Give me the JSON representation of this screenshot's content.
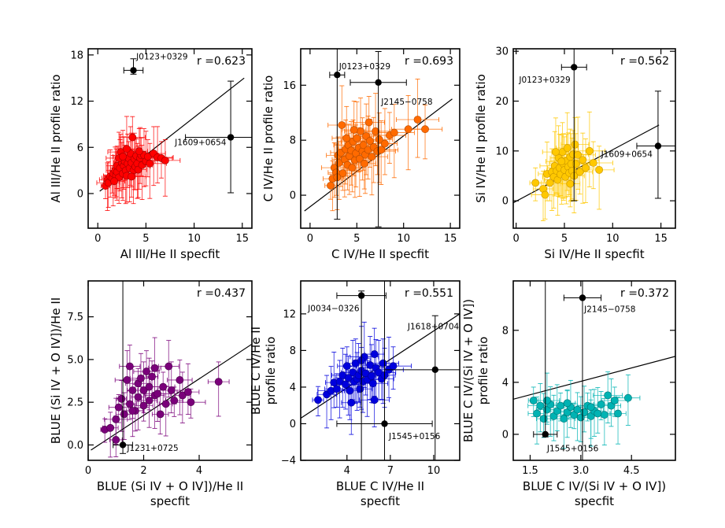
{
  "chart_data": [
    {
      "type": "scatter",
      "ylabel": "Al III/He II profile ratio",
      "xlabel": "Al III/He II specfit",
      "xlabel2": "",
      "corr": "r =0.623",
      "xlim": [
        -1,
        16
      ],
      "ylim": [
        -4.5,
        18.8
      ],
      "xticks": [
        0,
        5,
        10,
        15
      ],
      "yticks": [
        0,
        6,
        12,
        18
      ],
      "xtick_labels": [
        "0",
        "5",
        "10",
        "15"
      ],
      "ytick_labels": [
        "0",
        "6",
        "12",
        "18"
      ],
      "color": "#ff0000",
      "edge": "#9b0000",
      "fit": [
        [
          0.2,
          0.3
        ],
        [
          15.2,
          15.0
        ]
      ],
      "points": [
        [
          0.8,
          1.0
        ],
        [
          1.0,
          1.8
        ],
        [
          1.1,
          1.4
        ],
        [
          1.3,
          2.2
        ],
        [
          1.5,
          2.0
        ],
        [
          1.6,
          2.6
        ],
        [
          1.8,
          3.0
        ],
        [
          1.9,
          2.3
        ],
        [
          2.0,
          2.8
        ],
        [
          2.0,
          3.6
        ],
        [
          2.2,
          2.1
        ],
        [
          2.3,
          3.3
        ],
        [
          2.4,
          5.4
        ],
        [
          2.5,
          4.0
        ],
        [
          2.6,
          2.6
        ],
        [
          2.7,
          3.6
        ],
        [
          2.8,
          4.2
        ],
        [
          2.9,
          3.0
        ],
        [
          3.0,
          2.3
        ],
        [
          3.1,
          3.9
        ],
        [
          3.2,
          4.6
        ],
        [
          3.3,
          3.3
        ],
        [
          3.4,
          5.2
        ],
        [
          3.5,
          4.0
        ],
        [
          3.6,
          7.3
        ],
        [
          3.7,
          3.0
        ],
        [
          3.8,
          4.5
        ],
        [
          3.9,
          3.5
        ],
        [
          4.0,
          4.9
        ],
        [
          4.1,
          3.9
        ],
        [
          4.2,
          3.1
        ],
        [
          4.4,
          4.6
        ],
        [
          4.5,
          5.0
        ],
        [
          4.6,
          3.7
        ],
        [
          4.8,
          5.0
        ],
        [
          5.0,
          4.2
        ],
        [
          5.2,
          4.8
        ],
        [
          5.4,
          3.9
        ],
        [
          5.8,
          5.2
        ],
        [
          6.2,
          4.7
        ],
        [
          6.6,
          4.6
        ],
        [
          7.0,
          4.3
        ],
        [
          2.2,
          4.6
        ],
        [
          3.0,
          5.8
        ],
        [
          1.7,
          1.6
        ],
        [
          4.3,
          5.5
        ],
        [
          2.6,
          4.8
        ],
        [
          3.5,
          2.2
        ]
      ],
      "outliers": [
        {
          "x": 3.7,
          "y": 16.0,
          "xerr": 1.0,
          "ylo": 0.5,
          "yhi": 1.5,
          "label": "J0123+0329",
          "lx": 4.0,
          "ly": 17.4
        },
        {
          "x": 13.8,
          "y": 7.3,
          "xerr": 4.7,
          "ylo": 7.2,
          "yhi": 7.3,
          "label": "J1609+0654",
          "lx": 8.0,
          "ly": 6.3
        }
      ]
    },
    {
      "type": "scatter",
      "ylabel": "C IV/He II profile ratio",
      "xlabel": "C IV/He II specfit",
      "xlabel2": "",
      "corr": "r =0.693",
      "xlim": [
        -1,
        16
      ],
      "ylim": [
        -4.8,
        21.3
      ],
      "xticks": [
        0,
        5,
        10,
        15
      ],
      "yticks": [
        0,
        8,
        16
      ],
      "xtick_labels": [
        "0",
        "5",
        "10",
        "15"
      ],
      "ytick_labels": [
        "0",
        "8",
        "16"
      ],
      "color": "#ff6a00",
      "edge": "#b14a00",
      "fit": [
        [
          -0.6,
          -2.3
        ],
        [
          15.2,
          14.0
        ]
      ],
      "points": [
        [
          2.2,
          1.4
        ],
        [
          2.4,
          2.4
        ],
        [
          2.6,
          4.0
        ],
        [
          2.8,
          3.3
        ],
        [
          3.0,
          5.8
        ],
        [
          3.1,
          4.7
        ],
        [
          3.3,
          6.2
        ],
        [
          3.4,
          10.2
        ],
        [
          3.5,
          3.2
        ],
        [
          3.7,
          5.2
        ],
        [
          3.8,
          6.7
        ],
        [
          4.0,
          4.4
        ],
        [
          4.1,
          7.3
        ],
        [
          4.2,
          5.7
        ],
        [
          4.4,
          6.5
        ],
        [
          4.5,
          4.0
        ],
        [
          4.6,
          7.8
        ],
        [
          4.8,
          5.1
        ],
        [
          4.9,
          6.1
        ],
        [
          5.0,
          8.3
        ],
        [
          5.2,
          6.9
        ],
        [
          5.3,
          5.3
        ],
        [
          5.4,
          9.3
        ],
        [
          5.6,
          6.4
        ],
        [
          5.7,
          7.3
        ],
        [
          5.9,
          5.9
        ],
        [
          6.0,
          8.6
        ],
        [
          6.2,
          6.6
        ],
        [
          6.4,
          7.9
        ],
        [
          6.6,
          5.6
        ],
        [
          6.8,
          7.0
        ],
        [
          7.0,
          9.3
        ],
        [
          7.2,
          6.4
        ],
        [
          7.4,
          8.1
        ],
        [
          7.6,
          6.6
        ],
        [
          8.0,
          7.5
        ],
        [
          8.5,
          8.7
        ],
        [
          9.0,
          9.1
        ],
        [
          10.5,
          9.6
        ],
        [
          11.5,
          11.0
        ],
        [
          12.3,
          9.6
        ],
        [
          4.7,
          9.5
        ],
        [
          3.9,
          8.3
        ],
        [
          5.8,
          4.6
        ],
        [
          6.3,
          10.6
        ],
        [
          2.9,
          2.6
        ]
      ],
      "outliers": [
        {
          "x": 2.9,
          "y": 17.5,
          "xerr": 0.8,
          "ylo": 21.0,
          "yhi": 4.5,
          "label": "J0123+0329",
          "lx": 3.1,
          "ly": 18.3
        },
        {
          "x": 7.3,
          "y": 16.4,
          "xerr": 3.0,
          "ylo": 21.0,
          "yhi": 4.5,
          "label": "J2145−0758",
          "lx": 7.6,
          "ly": 13.2
        }
      ]
    },
    {
      "type": "scatter",
      "ylabel": "Si IV/He II profile ratio",
      "xlabel": "Si IV/He II specfit",
      "xlabel2": "",
      "corr": "r =0.562",
      "xlim": [
        -0.3,
        16.5
      ],
      "ylim": [
        -5.5,
        30.5
      ],
      "xticks": [
        0,
        5,
        10,
        15
      ],
      "yticks": [
        0,
        10,
        20,
        30
      ],
      "xtick_labels": [
        "0",
        "5",
        "10",
        "15"
      ],
      "ytick_labels": [
        "0",
        "10",
        "20",
        "30"
      ],
      "color": "#ffc800",
      "edge": "#c79400",
      "fit": [
        [
          -0.3,
          -0.4
        ],
        [
          14.8,
          15.2
        ]
      ],
      "points": [
        [
          2.0,
          3.6
        ],
        [
          2.8,
          2.4
        ],
        [
          3.0,
          1.2
        ],
        [
          3.2,
          5.4
        ],
        [
          3.5,
          3.6
        ],
        [
          3.7,
          5.8
        ],
        [
          3.9,
          4.8
        ],
        [
          4.0,
          7.0
        ],
        [
          4.2,
          6.0
        ],
        [
          4.3,
          4.2
        ],
        [
          4.4,
          8.6
        ],
        [
          4.5,
          6.6
        ],
        [
          4.6,
          5.3
        ],
        [
          4.8,
          9.8
        ],
        [
          4.9,
          7.4
        ],
        [
          5.0,
          6.2
        ],
        [
          5.1,
          4.8
        ],
        [
          5.2,
          8.0
        ],
        [
          5.3,
          10.6
        ],
        [
          5.4,
          6.8
        ],
        [
          5.5,
          5.6
        ],
        [
          5.6,
          8.8
        ],
        [
          5.7,
          7.4
        ],
        [
          5.8,
          6.0
        ],
        [
          5.9,
          9.3
        ],
        [
          6.0,
          5.0
        ],
        [
          6.2,
          7.4
        ],
        [
          6.4,
          9.2
        ],
        [
          6.6,
          5.8
        ],
        [
          6.9,
          8.2
        ],
        [
          7.2,
          6.6
        ],
        [
          7.6,
          10.0
        ],
        [
          8.0,
          7.6
        ],
        [
          8.6,
          6.2
        ],
        [
          4.1,
          9.8
        ],
        [
          5.6,
          3.4
        ],
        [
          6.1,
          11.3
        ],
        [
          4.7,
          7.9
        ]
      ],
      "outliers": [
        {
          "x": 6.0,
          "y": 26.8,
          "xerr": 1.3,
          "ylo": 26.8,
          "yhi": 4.0,
          "label": "J0123+0329",
          "lx": 0.3,
          "ly": 23.7
        },
        {
          "x": 14.7,
          "y": 11.0,
          "xerr": 2.2,
          "ylo": 10.5,
          "yhi": 11.0,
          "label": "J1609+0654",
          "lx": 8.8,
          "ly": 8.8
        }
      ]
    },
    {
      "type": "scatter",
      "ylabel": "BLUE (Si IV + O IV])/He II",
      "xlabel": "BLUE  (Si IV + O IV])/He II",
      "xlabel2": "specfit",
      "corr": "r =0.437",
      "xlim": [
        0,
        5.9
      ],
      "ylim": [
        -0.9,
        9.6
      ],
      "xticks": [
        0,
        2,
        4
      ],
      "yticks": [
        0.0,
        2.5,
        5.0,
        7.5
      ],
      "xtick_labels": [
        "0",
        "2",
        "4"
      ],
      "ytick_labels": [
        "0.0",
        "2.5",
        "5.0",
        "7.5"
      ],
      "color": "#7a007a",
      "edge": "#4a004a",
      "fit": [
        [
          0.1,
          -0.3
        ],
        [
          5.9,
          5.9
        ]
      ],
      "points": [
        [
          0.6,
          0.9
        ],
        [
          0.8,
          1.0
        ],
        [
          1.0,
          1.5
        ],
        [
          1.0,
          0.3
        ],
        [
          1.1,
          2.2
        ],
        [
          1.2,
          2.7
        ],
        [
          1.3,
          1.8
        ],
        [
          1.4,
          3.8
        ],
        [
          1.5,
          2.4
        ],
        [
          1.5,
          4.6
        ],
        [
          1.6,
          3.2
        ],
        [
          1.7,
          2.0
        ],
        [
          1.8,
          3.6
        ],
        [
          1.8,
          2.8
        ],
        [
          1.9,
          3.9
        ],
        [
          2.0,
          3.2
        ],
        [
          2.0,
          2.3
        ],
        [
          2.1,
          4.3
        ],
        [
          2.2,
          2.6
        ],
        [
          2.2,
          3.4
        ],
        [
          2.3,
          4.0
        ],
        [
          2.4,
          2.9
        ],
        [
          2.5,
          3.0
        ],
        [
          2.6,
          1.8
        ],
        [
          2.7,
          3.4
        ],
        [
          2.8,
          2.4
        ],
        [
          2.9,
          4.6
        ],
        [
          3.0,
          3.2
        ],
        [
          3.1,
          2.6
        ],
        [
          3.3,
          3.8
        ],
        [
          3.4,
          2.9
        ],
        [
          3.6,
          3.1
        ],
        [
          3.7,
          2.5
        ],
        [
          4.7,
          3.7
        ],
        [
          1.6,
          2.0
        ],
        [
          2.4,
          4.5
        ]
      ],
      "outliers": [
        {
          "x": 1.25,
          "y": 0.0,
          "xerr": 0.35,
          "ylo": 0.5,
          "yhi": 9.6,
          "label": "J1231+0725",
          "lx": 1.4,
          "ly": -0.35
        }
      ]
    },
    {
      "type": "scatter",
      "ylabel": "BLUE C IV/He II",
      "ylabel2": "profile ratio",
      "xlabel": "BLUE C IV/He II",
      "xlabel2": "specfit",
      "corr": "r =0.551",
      "xlim": [
        0.8,
        11.8
      ],
      "ylim": [
        -4.0,
        15.6
      ],
      "xticks": [
        4,
        7,
        10
      ],
      "yticks": [
        -4,
        0,
        4,
        8,
        12
      ],
      "xtick_labels": [
        "4",
        "7",
        "10"
      ],
      "ytick_labels": [
        "−4",
        "0",
        "4",
        "8",
        "12"
      ],
      "color": "#0000dd",
      "edge": "#00008f",
      "fit": [
        [
          0.8,
          0.6
        ],
        [
          11.8,
          12.0
        ]
      ],
      "points": [
        [
          2.0,
          2.6
        ],
        [
          2.6,
          3.2
        ],
        [
          2.9,
          3.6
        ],
        [
          3.1,
          4.5
        ],
        [
          3.3,
          3.8
        ],
        [
          3.5,
          4.6
        ],
        [
          3.7,
          5.3
        ],
        [
          3.9,
          4.3
        ],
        [
          4.0,
          6.3
        ],
        [
          4.1,
          5.0
        ],
        [
          4.2,
          3.6
        ],
        [
          4.4,
          5.6
        ],
        [
          4.5,
          4.6
        ],
        [
          4.6,
          6.6
        ],
        [
          4.7,
          4.9
        ],
        [
          4.8,
          5.3
        ],
        [
          4.9,
          3.8
        ],
        [
          5.0,
          5.8
        ],
        [
          5.1,
          4.6
        ],
        [
          5.2,
          7.3
        ],
        [
          5.3,
          5.5
        ],
        [
          5.4,
          4.8
        ],
        [
          5.6,
          6.4
        ],
        [
          5.7,
          5.2
        ],
        [
          5.8,
          4.4
        ],
        [
          5.9,
          7.6
        ],
        [
          6.0,
          6.1
        ],
        [
          6.2,
          5.6
        ],
        [
          6.4,
          4.9
        ],
        [
          6.5,
          6.6
        ],
        [
          6.6,
          5.3
        ],
        [
          6.9,
          5.9
        ],
        [
          7.2,
          6.3
        ],
        [
          4.3,
          2.3
        ],
        [
          5.9,
          2.6
        ],
        [
          5.0,
          6.9
        ]
      ],
      "outliers": [
        {
          "x": 5.0,
          "y": 14.0,
          "xerr": 1.7,
          "ylo": 18.0,
          "yhi": 0.5,
          "label": "J0034−0326",
          "lx": 1.3,
          "ly": 12.3
        },
        {
          "x": 10.1,
          "y": 5.9,
          "xerr": 3.5,
          "ylo": 10.0,
          "yhi": 5.9,
          "label": "J1618+0704",
          "lx": 8.2,
          "ly": 10.3
        },
        {
          "x": 6.6,
          "y": 0.0,
          "xerr": 3.3,
          "ylo": 4.0,
          "yhi": 15.6,
          "label": "J1545+0156",
          "lx": 6.9,
          "ly": -1.7
        }
      ]
    },
    {
      "type": "scatter",
      "ylabel": "BLUE C IV/(Si IV + O IV])",
      "ylabel2": "profile ratio",
      "xlabel": "BLUE C IV/(Si IV + O IV])",
      "xlabel2": "specfit",
      "corr": "r =0.372",
      "xlim": [
        1.0,
        5.8
      ],
      "ylim": [
        -2.0,
        11.8
      ],
      "xticks": [
        1.5,
        3.0,
        4.5
      ],
      "yticks": [
        0,
        4,
        8
      ],
      "xtick_labels": [
        "1.5",
        "3.0",
        "4.5"
      ],
      "ytick_labels": [
        "0",
        "4",
        "8"
      ],
      "color": "#00b3b3",
      "edge": "#007373",
      "fit": [
        [
          1.0,
          2.7
        ],
        [
          5.8,
          6.0
        ]
      ],
      "points": [
        [
          1.6,
          2.6
        ],
        [
          1.7,
          1.6
        ],
        [
          1.8,
          2.2
        ],
        [
          1.9,
          1.2
        ],
        [
          2.0,
          1.9
        ],
        [
          2.1,
          2.3
        ],
        [
          2.2,
          1.4
        ],
        [
          2.3,
          1.8
        ],
        [
          2.4,
          2.2
        ],
        [
          2.5,
          1.2
        ],
        [
          2.6,
          1.7
        ],
        [
          2.7,
          2.1
        ],
        [
          2.8,
          1.5
        ],
        [
          2.9,
          1.9
        ],
        [
          3.0,
          1.3
        ],
        [
          3.1,
          1.7
        ],
        [
          3.2,
          2.2
        ],
        [
          3.3,
          1.4
        ],
        [
          3.4,
          1.8
        ],
        [
          3.5,
          1.6
        ],
        [
          3.6,
          2.3
        ],
        [
          3.7,
          1.5
        ],
        [
          3.8,
          3.0
        ],
        [
          3.9,
          2.2
        ],
        [
          4.0,
          2.6
        ],
        [
          4.1,
          1.6
        ],
        [
          4.4,
          2.8
        ],
        [
          2.0,
          2.6
        ],
        [
          2.6,
          2.4
        ],
        [
          3.3,
          2.1
        ]
      ],
      "outliers": [
        {
          "x": 3.05,
          "y": 10.5,
          "xerr": 0.55,
          "ylo": 14.0,
          "yhi": 1.3,
          "label": "J2145−0758",
          "lx": 3.1,
          "ly": 9.4
        },
        {
          "x": 1.95,
          "y": 0.0,
          "xerr": 0.35,
          "ylo": 0.2,
          "yhi": 11.8,
          "label": "J1545+0156",
          "lx": 2.0,
          "ly": -1.3
        }
      ]
    }
  ]
}
